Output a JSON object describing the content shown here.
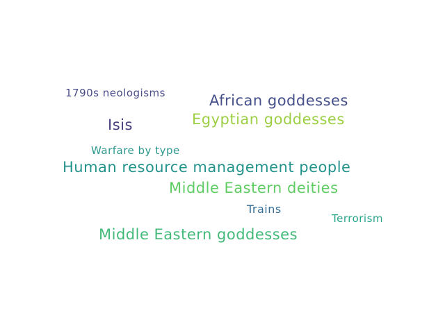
{
  "words": [
    {
      "text": "1790s neologisms",
      "color": "#4a4d87"
    },
    {
      "text": "African goddesses",
      "color": "#46508a"
    },
    {
      "text": "Egyptian goddesses",
      "color": "#9dcf45"
    },
    {
      "text": "Isis",
      "color": "#4a3d80"
    },
    {
      "text": "Warfare by type",
      "color": "#2a988d"
    },
    {
      "text": "Human resource management people",
      "color": "#24938c"
    },
    {
      "text": "Middle Eastern deities",
      "color": "#5fcd63"
    },
    {
      "text": "Trains",
      "color": "#336c95"
    },
    {
      "text": "Terrorism",
      "color": "#29a78b"
    },
    {
      "text": "Middle Eastern goddesses",
      "color": "#43b97a"
    }
  ]
}
